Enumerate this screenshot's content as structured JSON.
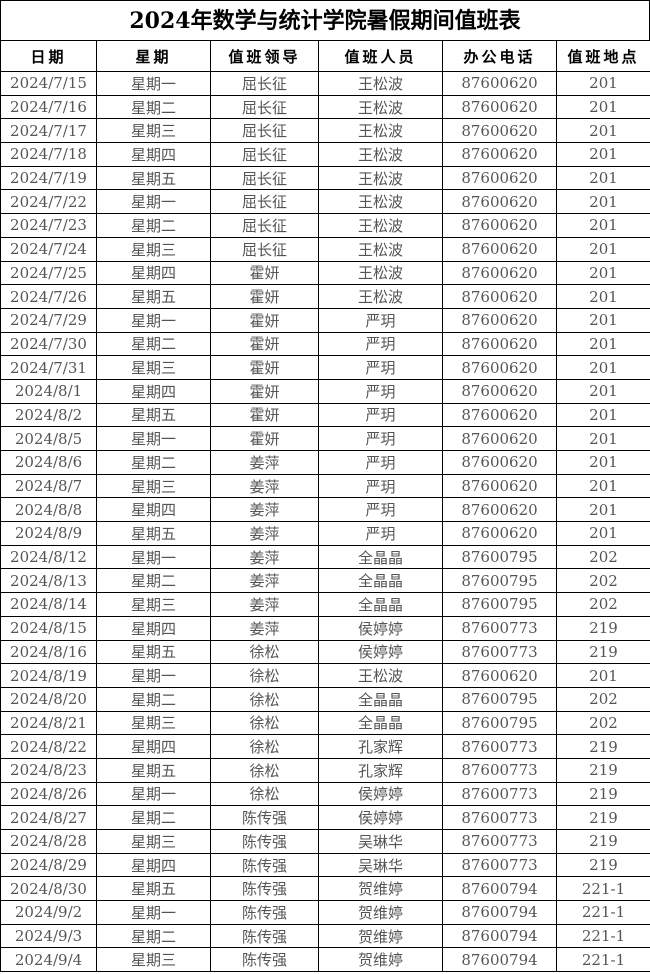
{
  "title": "2024年数学与统计学院暑假期间值班表",
  "headers": [
    "日期",
    "星期",
    "值班领导",
    "值班人员",
    "办公电话",
    "值班地点"
  ],
  "rows": [
    [
      "2024/7/15",
      "星期一",
      "屈长征",
      "王松波",
      "87600620",
      "201"
    ],
    [
      "2024/7/16",
      "星期二",
      "屈长征",
      "王松波",
      "87600620",
      "201"
    ],
    [
      "2024/7/17",
      "星期三",
      "屈长征",
      "王松波",
      "87600620",
      "201"
    ],
    [
      "2024/7/18",
      "星期四",
      "屈长征",
      "王松波",
      "87600620",
      "201"
    ],
    [
      "2024/7/19",
      "星期五",
      "屈长征",
      "王松波",
      "87600620",
      "201"
    ],
    [
      "2024/7/22",
      "星期一",
      "屈长征",
      "王松波",
      "87600620",
      "201"
    ],
    [
      "2024/7/23",
      "星期二",
      "屈长征",
      "王松波",
      "87600620",
      "201"
    ],
    [
      "2024/7/24",
      "星期三",
      "屈长征",
      "王松波",
      "87600620",
      "201"
    ],
    [
      "2024/7/25",
      "星期四",
      "霍妍",
      "王松波",
      "87600620",
      "201"
    ],
    [
      "2024/7/26",
      "星期五",
      "霍妍",
      "王松波",
      "87600620",
      "201"
    ],
    [
      "2024/7/29",
      "星期一",
      "霍妍",
      "严玥",
      "87600620",
      "201"
    ],
    [
      "2024/7/30",
      "星期二",
      "霍妍",
      "严玥",
      "87600620",
      "201"
    ],
    [
      "2024/7/31",
      "星期三",
      "霍妍",
      "严玥",
      "87600620",
      "201"
    ],
    [
      "2024/8/1",
      "星期四",
      "霍妍",
      "严玥",
      "87600620",
      "201"
    ],
    [
      "2024/8/2",
      "星期五",
      "霍妍",
      "严玥",
      "87600620",
      "201"
    ],
    [
      "2024/8/5",
      "星期一",
      "霍妍",
      "严玥",
      "87600620",
      "201"
    ],
    [
      "2024/8/6",
      "星期二",
      "姜萍",
      "严玥",
      "87600620",
      "201"
    ],
    [
      "2024/8/7",
      "星期三",
      "姜萍",
      "严玥",
      "87600620",
      "201"
    ],
    [
      "2024/8/8",
      "星期四",
      "姜萍",
      "严玥",
      "87600620",
      "201"
    ],
    [
      "2024/8/9",
      "星期五",
      "姜萍",
      "严玥",
      "87600620",
      "201"
    ],
    [
      "2024/8/12",
      "星期一",
      "姜萍",
      "全晶晶",
      "87600795",
      "202"
    ],
    [
      "2024/8/13",
      "星期二",
      "姜萍",
      "全晶晶",
      "87600795",
      "202"
    ],
    [
      "2024/8/14",
      "星期三",
      "姜萍",
      "全晶晶",
      "87600795",
      "202"
    ],
    [
      "2024/8/15",
      "星期四",
      "姜萍",
      "侯婷婷",
      "87600773",
      "219"
    ],
    [
      "2024/8/16",
      "星期五",
      "徐松",
      "侯婷婷",
      "87600773",
      "219"
    ],
    [
      "2024/8/19",
      "星期一",
      "徐松",
      "王松波",
      "87600620",
      "201"
    ],
    [
      "2024/8/20",
      "星期二",
      "徐松",
      "全晶晶",
      "87600795",
      "202"
    ],
    [
      "2024/8/21",
      "星期三",
      "徐松",
      "全晶晶",
      "87600795",
      "202"
    ],
    [
      "2024/8/22",
      "星期四",
      "徐松",
      "孔家辉",
      "87600773",
      "219"
    ],
    [
      "2024/8/23",
      "星期五",
      "徐松",
      "孔家辉",
      "87600773",
      "219"
    ],
    [
      "2024/8/26",
      "星期一",
      "徐松",
      "侯婷婷",
      "87600773",
      "219"
    ],
    [
      "2024/8/27",
      "星期二",
      "陈传强",
      "侯婷婷",
      "87600773",
      "219"
    ],
    [
      "2024/8/28",
      "星期三",
      "陈传强",
      "吴琳华",
      "87600773",
      "219"
    ],
    [
      "2024/8/29",
      "星期四",
      "陈传强",
      "吴琳华",
      "87600773",
      "219"
    ],
    [
      "2024/8/30",
      "星期五",
      "陈传强",
      "贺维婷",
      "87600794",
      "221-1"
    ],
    [
      "2024/9/2",
      "星期一",
      "陈传强",
      "贺维婷",
      "87600794",
      "221-1"
    ],
    [
      "2024/9/3",
      "星期二",
      "陈传强",
      "贺维婷",
      "87600794",
      "221-1"
    ],
    [
      "2024/9/4",
      "星期三",
      "陈传强",
      "贺维婷",
      "87600794",
      "221-1"
    ]
  ]
}
